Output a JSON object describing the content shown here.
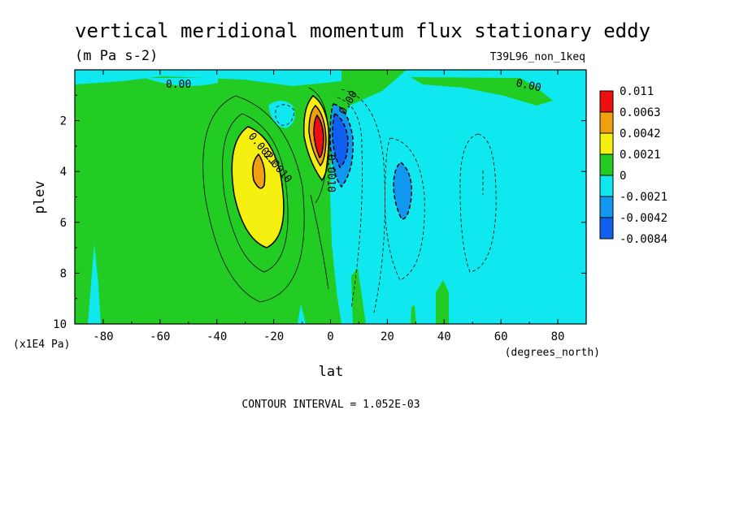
{
  "chart_data": {
    "type": "heatmap",
    "title": "vertical meridional momentum flux stationary eddy",
    "units": "(m Pa s-2)",
    "dataset": "T39L96_non_1keq",
    "xlabel": "lat",
    "x_units": "(degrees_north)",
    "ylabel": "plev",
    "y_units": "(x1E4 Pa)",
    "xlim": [
      -90,
      90
    ],
    "ylim": [
      10,
      0
    ],
    "x_ticks": [
      "-80",
      "-60",
      "-40",
      "-20",
      "0",
      "20",
      "40",
      "60",
      "80"
    ],
    "y_ticks": [
      "2",
      "4",
      "6",
      "8",
      "10"
    ],
    "contour_interval_label": "CONTOUR INTERVAL = 1.052E-03",
    "contour_labels": [
      "0.00",
      "0.00",
      "0.00",
      "0.0021",
      "0.0010",
      "0.0010"
    ],
    "colorbar": {
      "levels": [
        "0.011",
        "0.0063",
        "0.0042",
        "0.0021",
        "0",
        "-0.0021",
        "-0.0042",
        "-0.0084"
      ],
      "colors": [
        "#ee1010",
        "#f0a010",
        "#f5f010",
        "#22cc22",
        "#10e8f0",
        "#1098f0",
        "#1060f0"
      ]
    },
    "regions": [
      {
        "name": "background-positive",
        "value_range": [
          0,
          0.0021
        ],
        "color": "#22cc22"
      },
      {
        "name": "northern-negative",
        "value_range": [
          -0.0021,
          0
        ],
        "color": "#10e8f0"
      },
      {
        "name": "southern-maximum",
        "lat": -24,
        "plev": 4.0,
        "value_range": [
          0.0042,
          0.0063
        ],
        "color": "#f0a010"
      },
      {
        "name": "equatorial-positive-peak",
        "lat": -3,
        "plev": 2.6,
        "value_range": [
          0.0063,
          0.011
        ],
        "color": "#ee1010"
      },
      {
        "name": "equatorial-negative-peak",
        "lat": 3,
        "plev": 2.8,
        "value_range": [
          -0.0084,
          -0.0042
        ],
        "color": "#1060f0"
      },
      {
        "name": "subtropical-negative",
        "lat": 25,
        "plev": 5.0,
        "value_range": [
          -0.0042,
          -0.0021
        ],
        "color": "#1098f0"
      }
    ]
  }
}
